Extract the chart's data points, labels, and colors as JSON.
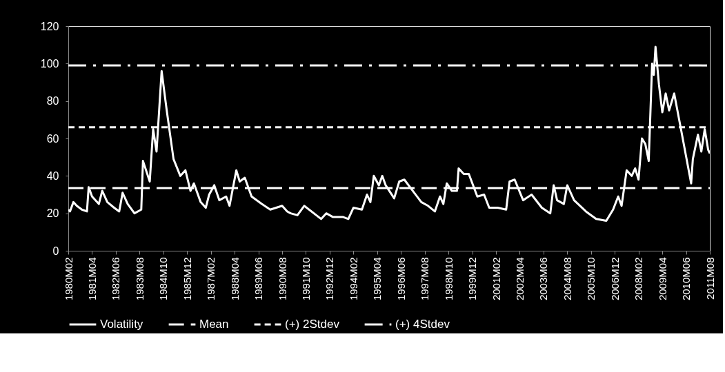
{
  "chart_data": {
    "type": "line",
    "x": [
      "1980-02",
      "1980-03",
      "1980-05",
      "1980-07",
      "1980-10",
      "1981-01",
      "1981-02",
      "1981-04",
      "1981-08",
      "1981-10",
      "1982-01",
      "1982-05",
      "1982-08",
      "1982-10",
      "1983-01",
      "1983-05",
      "1983-09",
      "1983-10",
      "1984-02",
      "1984-04",
      "1984-06",
      "1984-09",
      "1984-12",
      "1985-04",
      "1985-08",
      "1985-11",
      "1986-02",
      "1986-04",
      "1986-08",
      "1986-11",
      "1987-01",
      "1987-04",
      "1987-07",
      "1987-11",
      "1988-01",
      "1988-05",
      "1988-07",
      "1988-10",
      "1989-02",
      "1989-08",
      "1990-01",
      "1990-08",
      "1990-11",
      "1991-01",
      "1991-05",
      "1991-09",
      "1992-07",
      "1992-10",
      "1993-02",
      "1993-08",
      "1993-11",
      "1994-02",
      "1994-07",
      "1994-10",
      "1994-12",
      "1995-02",
      "1995-05",
      "1995-07",
      "1995-09",
      "1996-02",
      "1996-05",
      "1996-08",
      "1997-01",
      "1997-06",
      "1997-10",
      "1998-02",
      "1998-05",
      "1998-07",
      "1998-09",
      "1998-12",
      "1999-03",
      "1999-04",
      "1999-07",
      "1999-10",
      "2000-03",
      "2000-07",
      "2000-10",
      "2001-03",
      "2001-08",
      "2001-10",
      "2002-01",
      "2002-06",
      "2002-11",
      "2003-05",
      "2003-10",
      "2003-12",
      "2004-02",
      "2004-06",
      "2004-08",
      "2004-12",
      "2005-07",
      "2006-01",
      "2006-07",
      "2006-11",
      "2007-02",
      "2007-04",
      "2007-07",
      "2007-10",
      "2007-12",
      "2008-02",
      "2008-04",
      "2008-06",
      "2008-08",
      "2008-10",
      "2008-11",
      "2008-12",
      "2009-02",
      "2009-04",
      "2009-06",
      "2009-08",
      "2009-11",
      "2010-03",
      "2010-09",
      "2010-10",
      "2011-01",
      "2011-03",
      "2011-05",
      "2011-07",
      "2011-08"
    ],
    "series": [
      {
        "name": "Volatility",
        "color": "#ffffff",
        "line_style": "solid",
        "values": [
          22,
          21,
          26,
          24,
          22,
          21,
          34,
          29,
          25,
          32,
          26,
          23,
          21,
          31,
          25,
          20,
          22,
          48,
          37,
          65,
          53,
          96,
          75,
          49,
          40,
          43,
          32,
          36,
          26,
          23,
          30,
          35,
          27,
          29,
          24,
          43,
          37,
          39,
          29,
          25,
          22,
          24,
          21,
          20,
          19,
          24,
          17,
          20,
          18,
          18,
          17,
          23,
          22,
          30,
          26,
          40,
          35,
          40,
          35,
          28,
          37,
          38,
          32,
          26,
          24,
          21,
          29,
          25,
          36,
          32,
          32,
          44,
          41,
          41,
          29,
          30,
          23,
          23,
          22,
          37,
          38,
          27,
          30,
          23,
          20,
          35,
          27,
          25,
          35,
          27,
          21,
          17,
          16,
          22,
          29,
          24,
          43,
          40,
          44,
          38,
          60,
          57,
          48,
          100,
          94,
          109,
          89,
          74,
          84,
          75,
          84,
          65,
          36,
          49,
          62,
          53,
          65,
          54,
          52
        ]
      },
      {
        "name": "Mean",
        "color": "#ffffff",
        "line_style": "dashed",
        "x": [
          "1980-02",
          "2011-08"
        ],
        "values": [
          33.5,
          33.5
        ]
      },
      {
        "name": "(+) 2Stdev",
        "color": "#ffffff",
        "line_style": "dotted",
        "x": [
          "1980-02",
          "2011-08"
        ],
        "values": [
          66,
          66
        ]
      },
      {
        "name": "(+) 4Stdev",
        "color": "#ffffff",
        "line_style": "dashdot",
        "x": [
          "1980-02",
          "2011-08"
        ],
        "values": [
          99,
          99
        ]
      }
    ],
    "xlim": [
      "1980-02",
      "2011-08"
    ],
    "xticks": [
      {
        "value": "1980-02",
        "label": "1980M02"
      },
      {
        "value": "1981-04",
        "label": "1981M04"
      },
      {
        "value": "1982-06",
        "label": "1982M06"
      },
      {
        "value": "1983-08",
        "label": "1983M08"
      },
      {
        "value": "1984-10",
        "label": "1984M10"
      },
      {
        "value": "1985-12",
        "label": "1985M12"
      },
      {
        "value": "1987-02",
        "label": "1987M02"
      },
      {
        "value": "1988-04",
        "label": "1988M04"
      },
      {
        "value": "1989-06",
        "label": "1989M06"
      },
      {
        "value": "1990-08",
        "label": "1990M08"
      },
      {
        "value": "1991-10",
        "label": "1991M10"
      },
      {
        "value": "1992-12",
        "label": "1992M12"
      },
      {
        "value": "1994-02",
        "label": "1994M02"
      },
      {
        "value": "1995-04",
        "label": "1995M04"
      },
      {
        "value": "1996-06",
        "label": "1996M06"
      },
      {
        "value": "1997-08",
        "label": "1997M08"
      },
      {
        "value": "1998-10",
        "label": "1998M10"
      },
      {
        "value": "1999-12",
        "label": "1999M12"
      },
      {
        "value": "2001-02",
        "label": "2001M02"
      },
      {
        "value": "2002-04",
        "label": "2002M04"
      },
      {
        "value": "2003-06",
        "label": "2003M06"
      },
      {
        "value": "2004-08",
        "label": "2004M08"
      },
      {
        "value": "2005-10",
        "label": "2005M10"
      },
      {
        "value": "2006-12",
        "label": "2006M12"
      },
      {
        "value": "2008-02",
        "label": "2008M02"
      },
      {
        "value": "2009-04",
        "label": "2009M04"
      },
      {
        "value": "2010-06",
        "label": "2010M06"
      },
      {
        "value": "2011-08",
        "label": "2011M08"
      }
    ],
    "ylim": [
      0,
      120
    ],
    "yticks": [
      0,
      20,
      40,
      60,
      80,
      100,
      120
    ],
    "legend": "bottom"
  }
}
